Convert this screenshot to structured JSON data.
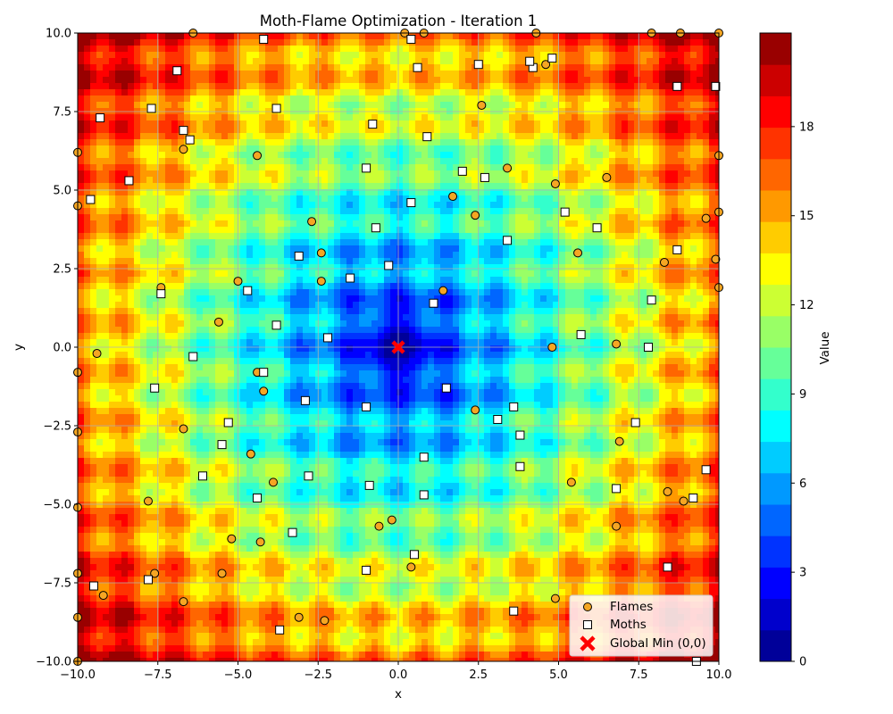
{
  "chart_data": {
    "type": "scatter",
    "title": "Moth-Flame Optimization - Iteration 1",
    "xlabel": "x",
    "ylabel": "y",
    "xlim": [
      -10,
      10
    ],
    "ylim": [
      -10,
      10
    ],
    "grid": true,
    "xticks": [
      -10,
      -7.5,
      -5,
      -2.5,
      0,
      2.5,
      5,
      7.5,
      10
    ],
    "xtick_labels": [
      "−10.0",
      "−7.5",
      "−5.0",
      "−2.5",
      "0.0",
      "2.5",
      "5.0",
      "7.5",
      "10.0"
    ],
    "yticks": [
      -10,
      -7.5,
      -5,
      -2.5,
      0,
      2.5,
      5,
      7.5,
      10
    ],
    "ytick_labels": [
      "−10.0",
      "−7.5",
      "−5.0",
      "−2.5",
      "0.0",
      "2.5",
      "5.0",
      "7.5",
      "10.0"
    ],
    "background": {
      "type": "filled-contour",
      "function": "rastrigin-like (minimum at origin)",
      "colormap": "jet",
      "vmin": 0,
      "vmax": 20,
      "levels": 20
    },
    "colorbar": {
      "label": "Value",
      "ticks": [
        0,
        3,
        6,
        9,
        12,
        15,
        18
      ],
      "tick_labels": [
        "0",
        "3",
        "6",
        "9",
        "12",
        "15",
        "18"
      ]
    },
    "legend_position": "bottom-right",
    "legend_labels": [
      "Flames",
      "Moths",
      "Global Min (0,0)"
    ],
    "series": [
      {
        "name": "Flames",
        "marker": "circle",
        "color": "#f5a623",
        "points": [
          [
            0.8,
            10
          ],
          [
            -6.4,
            10
          ],
          [
            8.8,
            10
          ],
          [
            10,
            10
          ],
          [
            7.9,
            10
          ],
          [
            0.2,
            10
          ],
          [
            4.3,
            10
          ],
          [
            4.6,
            9
          ],
          [
            -10,
            6.2
          ],
          [
            -6.7,
            6.3
          ],
          [
            -4.4,
            6.1
          ],
          [
            10,
            6.1
          ],
          [
            -2.7,
            4
          ],
          [
            2.4,
            4.2
          ],
          [
            1.7,
            4.8
          ],
          [
            3.4,
            5.7
          ],
          [
            6.5,
            5.4
          ],
          [
            4.9,
            5.2
          ],
          [
            9.6,
            4.1
          ],
          [
            10,
            4.3
          ],
          [
            2.6,
            7.7
          ],
          [
            -10,
            4.5
          ],
          [
            -2.4,
            3
          ],
          [
            -2.4,
            2.1
          ],
          [
            -5,
            2.1
          ],
          [
            -7.4,
            1.9
          ],
          [
            1.4,
            1.8
          ],
          [
            5.6,
            3
          ],
          [
            8.3,
            2.7
          ],
          [
            9.9,
            2.8
          ],
          [
            10,
            1.9
          ],
          [
            -5.6,
            0.8
          ],
          [
            -9.4,
            -0.2
          ],
          [
            -10,
            -0.8
          ],
          [
            -4.4,
            -0.8
          ],
          [
            -4.2,
            -1.4
          ],
          [
            4.8,
            0
          ],
          [
            6.8,
            0.1
          ],
          [
            -10,
            -2.7
          ],
          [
            -6.7,
            -2.6
          ],
          [
            2.4,
            -2
          ],
          [
            6.9,
            -3
          ],
          [
            -4.6,
            -3.4
          ],
          [
            -3.9,
            -4.3
          ],
          [
            -7.8,
            -4.9
          ],
          [
            -10,
            -5.1
          ],
          [
            -0.2,
            -5.5
          ],
          [
            -0.6,
            -5.7
          ],
          [
            5.4,
            -4.3
          ],
          [
            8.4,
            -4.6
          ],
          [
            8.9,
            -4.9
          ],
          [
            6.8,
            -5.7
          ],
          [
            -5.2,
            -6.1
          ],
          [
            -4.3,
            -6.2
          ],
          [
            -5.5,
            -7.2
          ],
          [
            -7.6,
            -7.2
          ],
          [
            -10,
            -7.2
          ],
          [
            0.4,
            -7
          ],
          [
            -9.2,
            -7.9
          ],
          [
            -6.7,
            -8.1
          ],
          [
            -10,
            -8.6
          ],
          [
            -3.1,
            -8.6
          ],
          [
            -2.3,
            -8.7
          ],
          [
            4.9,
            -8
          ],
          [
            -10,
            -10
          ]
        ]
      },
      {
        "name": "Moths",
        "marker": "square",
        "color": "#ffffff",
        "points": [
          [
            -4.2,
            9.8
          ],
          [
            0.4,
            9.8
          ],
          [
            2.5,
            9
          ],
          [
            0.6,
            8.9
          ],
          [
            4.2,
            8.9
          ],
          [
            4.1,
            9.1
          ],
          [
            4.8,
            9.2
          ],
          [
            -6.9,
            8.8
          ],
          [
            8.7,
            8.3
          ],
          [
            9.9,
            8.3
          ],
          [
            -9.3,
            7.3
          ],
          [
            -7.7,
            7.6
          ],
          [
            -3.8,
            7.6
          ],
          [
            -0.8,
            7.1
          ],
          [
            0.9,
            6.7
          ],
          [
            -6.7,
            6.9
          ],
          [
            -6.5,
            6.6
          ],
          [
            -8.4,
            5.3
          ],
          [
            -9.6,
            4.7
          ],
          [
            -1,
            5.7
          ],
          [
            2,
            5.6
          ],
          [
            2.7,
            5.4
          ],
          [
            0.4,
            4.6
          ],
          [
            5.2,
            4.3
          ],
          [
            6.2,
            3.8
          ],
          [
            -0.7,
            3.8
          ],
          [
            3.4,
            3.4
          ],
          [
            8.7,
            3.1
          ],
          [
            -3.1,
            2.9
          ],
          [
            -0.3,
            2.6
          ],
          [
            -1.5,
            2.2
          ],
          [
            -4.7,
            1.8
          ],
          [
            -7.4,
            1.7
          ],
          [
            1.1,
            1.4
          ],
          [
            7.9,
            1.5
          ],
          [
            -3.8,
            0.7
          ],
          [
            -2.2,
            0.3
          ],
          [
            5.7,
            0.4
          ],
          [
            7.8,
            0
          ],
          [
            -6.4,
            -0.3
          ],
          [
            -4.2,
            -0.8
          ],
          [
            -7.6,
            -1.3
          ],
          [
            1.5,
            -1.3
          ],
          [
            -2.9,
            -1.7
          ],
          [
            -1,
            -1.9
          ],
          [
            3.6,
            -1.9
          ],
          [
            3.1,
            -2.3
          ],
          [
            7.4,
            -2.4
          ],
          [
            -5.3,
            -2.4
          ],
          [
            3.8,
            -2.8
          ],
          [
            -5.5,
            -3.1
          ],
          [
            0.8,
            -3.5
          ],
          [
            3.8,
            -3.8
          ],
          [
            -2.8,
            -4.1
          ],
          [
            -6.1,
            -4.1
          ],
          [
            9.6,
            -3.9
          ],
          [
            -0.9,
            -4.4
          ],
          [
            6.8,
            -4.5
          ],
          [
            0.8,
            -4.7
          ],
          [
            -4.4,
            -4.8
          ],
          [
            9.2,
            -4.8
          ],
          [
            -3.3,
            -5.9
          ],
          [
            0.5,
            -6.6
          ],
          [
            8.4,
            -7
          ],
          [
            -1,
            -7.1
          ],
          [
            -7.8,
            -7.4
          ],
          [
            -9.5,
            -7.6
          ],
          [
            3.6,
            -8.4
          ],
          [
            -3.7,
            -9
          ],
          [
            9.3,
            -10
          ]
        ]
      }
    ],
    "global_min": {
      "name": "Global Min (0,0)",
      "x": 0,
      "y": 0,
      "marker": "X",
      "color": "#ff0000"
    }
  }
}
